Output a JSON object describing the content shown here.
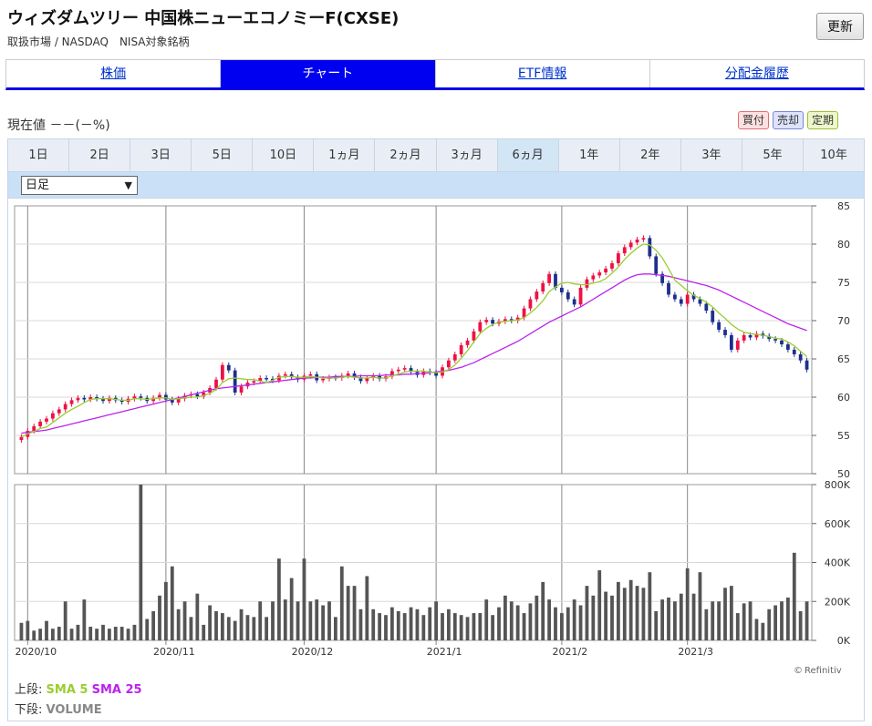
{
  "header": {
    "title": "ウィズダムツリー 中国株ニューエコノミーF(CXSE)",
    "subtitle": "取扱市場 / NASDAQ　NISA対象銘柄",
    "refresh_label": "更新"
  },
  "main_tabs": [
    {
      "label": "株価",
      "active": false
    },
    {
      "label": "チャート",
      "active": true
    },
    {
      "label": "ETF情報",
      "active": false
    },
    {
      "label": "分配金履歴",
      "active": false
    }
  ],
  "price": {
    "text": "現在値 －－(－%)"
  },
  "trade_buttons": {
    "buy": "買付",
    "sell": "売却",
    "regular": "定期"
  },
  "periods": [
    {
      "label": "1日"
    },
    {
      "label": "2日"
    },
    {
      "label": "3日"
    },
    {
      "label": "5日"
    },
    {
      "label": "10日"
    },
    {
      "label": "1ヵ月"
    },
    {
      "label": "2ヵ月"
    },
    {
      "label": "3ヵ月"
    },
    {
      "label": "6ヵ月",
      "active": true
    },
    {
      "label": "1年"
    },
    {
      "label": "2年"
    },
    {
      "label": "3年"
    },
    {
      "label": "5年"
    },
    {
      "label": "10年"
    }
  ],
  "frequency_select": {
    "value": "日足"
  },
  "legend": {
    "upper_label": "上段:",
    "sma5": "SMA 5",
    "sma25": "SMA 25",
    "lower_label": "下段:",
    "volume": "VOLUME"
  },
  "credit": "Refinitiv",
  "chart_data": {
    "type": "candlestick",
    "price_axis": {
      "ylim": [
        50,
        85
      ],
      "ticks": [
        "85",
        "80",
        "75",
        "70",
        "65",
        "60",
        "55",
        "50"
      ]
    },
    "volume_axis": {
      "ylim": [
        0,
        800
      ],
      "ticks": [
        "800K",
        "600K",
        "400K",
        "200K",
        "0K"
      ]
    },
    "x_labels": [
      "2020/10",
      "2020/11",
      "2020/12",
      "2021/1",
      "2021/2",
      "2021/3"
    ],
    "colors": {
      "up": "#ee1144",
      "down": "#1c2f8f",
      "sma5": "#9acd32",
      "sma25": "#bb22ee",
      "volume": "#555555"
    },
    "closes": [
      54.8,
      55.6,
      56.2,
      56.8,
      57.2,
      57.9,
      58.4,
      59.1,
      59.6,
      59.9,
      59.7,
      60.0,
      59.8,
      59.5,
      59.9,
      59.6,
      59.4,
      59.8,
      60.1,
      59.9,
      59.5,
      59.9,
      60.3,
      59.7,
      59.3,
      59.8,
      60.2,
      60.4,
      60.1,
      60.6,
      61.2,
      62.3,
      64.2,
      63.5,
      60.6,
      61.4,
      61.9,
      62.1,
      62.5,
      62.4,
      62.2,
      62.8,
      63.0,
      62.6,
      62.3,
      62.8,
      63.0,
      62.2,
      62.4,
      62.6,
      62.5,
      62.8,
      63.1,
      62.6,
      62.1,
      62.5,
      62.8,
      62.4,
      62.7,
      63.4,
      63.6,
      63.8,
      63.3,
      62.9,
      63.4,
      63.2,
      62.8,
      63.9,
      64.8,
      65.6,
      66.8,
      67.4,
      68.6,
      69.8,
      70.1,
      69.6,
      69.9,
      70.2,
      70.0,
      70.4,
      71.6,
      72.8,
      73.8,
      74.9,
      76.1,
      74.3,
      73.7,
      72.8,
      72.1,
      74.3,
      75.4,
      75.9,
      76.3,
      76.8,
      77.5,
      78.8,
      79.6,
      80.2,
      80.6,
      80.8,
      78.4,
      76.1,
      74.9,
      73.4,
      72.8,
      72.2,
      73.4,
      72.8,
      72.2,
      71.3,
      69.8,
      68.8,
      68.1,
      66.2,
      67.4,
      68.1,
      67.8,
      68.3,
      68.0,
      67.6,
      67.4,
      66.9,
      66.2,
      65.6,
      64.8,
      63.6
    ],
    "volume_k": [
      90,
      100,
      50,
      60,
      100,
      60,
      70,
      200,
      60,
      80,
      210,
      70,
      60,
      80,
      60,
      70,
      70,
      60,
      80,
      800,
      110,
      150,
      230,
      300,
      380,
      160,
      200,
      120,
      240,
      80,
      180,
      150,
      140,
      120,
      100,
      160,
      130,
      120,
      200,
      120,
      200,
      420,
      210,
      320,
      200,
      420,
      200,
      210,
      180,
      200,
      120,
      380,
      280,
      280,
      160,
      330,
      160,
      140,
      130,
      170,
      150,
      140,
      170,
      160,
      130,
      170,
      200,
      140,
      160,
      140,
      130,
      120,
      140,
      140,
      210,
      130,
      170,
      230,
      200,
      180,
      140,
      190,
      230,
      300,
      210,
      170,
      140,
      170,
      210,
      180,
      280,
      230,
      360,
      250,
      230,
      300,
      270,
      310,
      280,
      270,
      350,
      150,
      210,
      220,
      200,
      240,
      370,
      240,
      350,
      160,
      200,
      200,
      270,
      280,
      140,
      190,
      200,
      110,
      90,
      160,
      180,
      200,
      220,
      450,
      150,
      200
    ],
    "sma5": [
      54.8,
      55.2,
      55.5,
      55.9,
      56.1,
      56.7,
      57.3,
      57.9,
      58.4,
      58.8,
      59.3,
      59.7,
      59.8,
      59.8,
      59.8,
      59.7,
      59.6,
      59.6,
      59.8,
      59.8,
      59.7,
      59.8,
      59.9,
      59.9,
      59.7,
      59.8,
      59.9,
      60.0,
      60.0,
      60.2,
      60.5,
      61.0,
      61.9,
      62.4,
      62.5,
      62.4,
      62.3,
      62.3,
      62.1,
      61.9,
      62.2,
      62.6,
      62.7,
      62.7,
      62.6,
      62.6,
      62.7,
      62.6,
      62.5,
      62.5,
      62.5,
      62.6,
      62.7,
      62.6,
      62.5,
      62.5,
      62.6,
      62.5,
      62.5,
      62.8,
      63.0,
      63.3,
      63.4,
      63.4,
      63.4,
      63.3,
      63.2,
      63.3,
      63.6,
      64.2,
      65.1,
      66.1,
      67.2,
      68.3,
      69.0,
      69.5,
      69.8,
      69.9,
      70.0,
      70.1,
      70.4,
      71.0,
      71.7,
      72.6,
      73.8,
      74.4,
      74.9,
      75.0,
      74.8,
      74.7,
      74.7,
      74.9,
      75.1,
      75.5,
      76.2,
      77.0,
      78.0,
      78.8,
      79.5,
      80.0,
      79.9,
      79.2,
      78.2,
      76.8,
      75.3,
      74.6,
      73.9,
      73.3,
      72.9,
      72.4,
      71.8,
      71.0,
      70.3,
      69.5,
      68.9,
      68.5,
      68.3,
      68.2,
      68.1,
      67.9,
      67.7,
      67.6,
      67.2,
      66.7,
      66.0,
      65.3
    ],
    "sma25": [
      55.3,
      55.4,
      55.5,
      55.6,
      55.7,
      55.9,
      56.1,
      56.3,
      56.5,
      56.7,
      56.9,
      57.1,
      57.3,
      57.5,
      57.7,
      57.9,
      58.1,
      58.3,
      58.5,
      58.7,
      58.9,
      59.1,
      59.3,
      59.5,
      59.7,
      59.9,
      60.1,
      60.3,
      60.5,
      60.7,
      60.9,
      61.1,
      61.2,
      61.3,
      61.4,
      61.5,
      61.6,
      61.7,
      61.8,
      61.9,
      62.0,
      62.1,
      62.2,
      62.3,
      62.4,
      62.5,
      62.5,
      62.6,
      62.6,
      62.6,
      62.7,
      62.7,
      62.7,
      62.7,
      62.8,
      62.8,
      62.8,
      62.8,
      62.9,
      62.9,
      62.9,
      63.0,
      63.0,
      63.1,
      63.1,
      63.2,
      63.3,
      63.4,
      63.5,
      63.7,
      63.9,
      64.2,
      64.5,
      64.9,
      65.3,
      65.7,
      66.1,
      66.5,
      66.9,
      67.3,
      67.8,
      68.3,
      68.8,
      69.3,
      69.8,
      70.2,
      70.6,
      71.0,
      71.4,
      71.8,
      72.3,
      72.8,
      73.3,
      73.8,
      74.3,
      74.8,
      75.3,
      75.7,
      76.0,
      76.1,
      76.1,
      76.0,
      75.9,
      75.8,
      75.6,
      75.4,
      75.2,
      75.0,
      74.8,
      74.6,
      74.3,
      74.0,
      73.6,
      73.2,
      72.8,
      72.4,
      72.0,
      71.6,
      71.2,
      70.8,
      70.4,
      70.0,
      69.6,
      69.3,
      69.0,
      68.7
    ]
  }
}
